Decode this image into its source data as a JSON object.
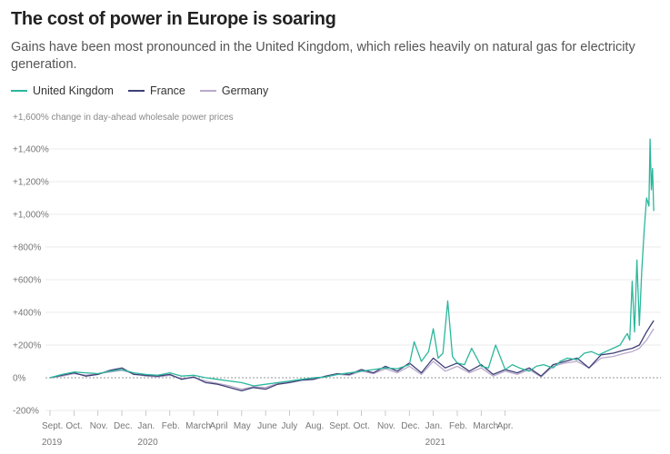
{
  "title": "The cost of power in Europe is soaring",
  "subtitle": "Gains have been most pronounced in the United Kingdom, which relies heavily on natural gas for electricity generation.",
  "legend": [
    {
      "name": "United Kingdom",
      "color": "#2bb79c"
    },
    {
      "name": "France",
      "color": "#3f3f78"
    },
    {
      "name": "Germany",
      "color": "#b9a9c9"
    }
  ],
  "chart_data": {
    "type": "line",
    "title": "The cost of power in Europe is soaring",
    "ylabel": "+1,600% change in day-ahead wholesale power prices",
    "ylim": [
      -200,
      1600
    ],
    "yticks": [
      -200,
      0,
      200,
      400,
      600,
      800,
      1000,
      1200,
      1400
    ],
    "ytick_labels": [
      "-200%",
      "0%",
      "+200%",
      "+400%",
      "+600%",
      "+800%",
      "+1,000%",
      "+1,200%",
      "+1,400%"
    ],
    "xlim": [
      0,
      25.5
    ],
    "xticks": [
      0,
      1,
      2,
      3,
      4,
      5,
      6,
      7,
      8,
      9,
      10,
      11,
      12,
      13,
      14,
      15,
      16,
      17,
      18,
      19
    ],
    "xtick_labels": [
      "Sept.",
      "Oct.",
      "Nov.",
      "Dec.",
      "Jan.",
      "Feb.",
      "March",
      "April",
      "May",
      "June",
      "July",
      "Aug.",
      "Sept.",
      "Oct.",
      "Nov.",
      "Dec.",
      "Jan.",
      "Feb.",
      "March",
      "Apr."
    ],
    "year_labels": [
      {
        "x": 0,
        "label": "2019"
      },
      {
        "x": 4,
        "label": "2020"
      },
      {
        "x": 16,
        "label": "2021"
      }
    ],
    "series": [
      {
        "name": "United Kingdom",
        "color": "#2bb79c",
        "x": [
          0,
          0.5,
          1,
          1.5,
          2,
          2.5,
          3,
          3.5,
          4,
          4.5,
          5,
          5.5,
          6,
          6.5,
          7,
          7.5,
          8,
          8.5,
          9,
          9.5,
          10,
          10.5,
          11,
          11.5,
          12,
          12.5,
          13,
          13.5,
          14,
          14.5,
          15,
          15.2,
          15.5,
          15.8,
          16,
          16.2,
          16.4,
          16.6,
          16.8,
          17,
          17.3,
          17.6,
          18,
          18.3,
          18.6,
          19,
          19.3,
          19.6,
          20,
          20.3,
          20.6,
          21,
          21.3,
          21.6,
          22,
          22.3,
          22.6,
          22.9,
          23.2,
          23.5,
          23.8,
          24,
          24.1,
          24.2,
          24.3,
          24.4,
          24.5,
          24.6,
          24.7,
          24.8,
          24.9,
          25,
          25.05,
          25.1,
          25.15,
          25.2
        ],
        "values": [
          0,
          20,
          35,
          30,
          25,
          40,
          50,
          30,
          20,
          15,
          30,
          10,
          15,
          0,
          -10,
          -20,
          -30,
          -50,
          -40,
          -30,
          -20,
          -10,
          0,
          5,
          20,
          30,
          40,
          50,
          60,
          55,
          80,
          220,
          100,
          160,
          300,
          120,
          150,
          470,
          130,
          90,
          80,
          180,
          70,
          60,
          200,
          50,
          80,
          60,
          40,
          70,
          80,
          60,
          100,
          120,
          110,
          150,
          160,
          140,
          160,
          180,
          200,
          250,
          270,
          230,
          590,
          280,
          720,
          320,
          650,
          900,
          1100,
          1050,
          1460,
          1150,
          1280,
          1020
        ]
      },
      {
        "name": "France",
        "color": "#3f3f78",
        "x": [
          0,
          0.5,
          1,
          1.5,
          2,
          2.5,
          3,
          3.5,
          4,
          4.5,
          5,
          5.5,
          6,
          6.5,
          7,
          7.5,
          8,
          8.5,
          9,
          9.5,
          10,
          10.5,
          11,
          11.5,
          12,
          12.5,
          13,
          13.5,
          14,
          14.5,
          15,
          15.5,
          16,
          16.5,
          17,
          17.5,
          18,
          18.5,
          19,
          19.5,
          20,
          20.5,
          21,
          21.5,
          22,
          22.5,
          23,
          23.5,
          24,
          24.3,
          24.6,
          24.9,
          25.2
        ],
        "values": [
          0,
          15,
          30,
          10,
          20,
          45,
          60,
          20,
          15,
          10,
          20,
          -10,
          5,
          -30,
          -40,
          -60,
          -80,
          -60,
          -70,
          -40,
          -30,
          -15,
          -10,
          10,
          25,
          20,
          50,
          30,
          70,
          40,
          90,
          30,
          120,
          60,
          90,
          40,
          80,
          20,
          50,
          30,
          60,
          10,
          80,
          100,
          120,
          60,
          140,
          150,
          170,
          180,
          200,
          280,
          350
        ]
      },
      {
        "name": "Germany",
        "color": "#b9a9c9",
        "x": [
          0,
          0.5,
          1,
          1.5,
          2,
          2.5,
          3,
          3.5,
          4,
          4.5,
          5,
          5.5,
          6,
          6.5,
          7,
          7.5,
          8,
          8.5,
          9,
          9.5,
          10,
          10.5,
          11,
          11.5,
          12,
          12.5,
          13,
          13.5,
          14,
          14.5,
          15,
          15.5,
          16,
          16.5,
          17,
          17.5,
          18,
          18.5,
          19,
          19.5,
          20,
          20.5,
          21,
          21.5,
          22,
          22.5,
          23,
          23.5,
          24,
          24.3,
          24.6,
          24.9,
          25.2
        ],
        "values": [
          0,
          10,
          25,
          15,
          25,
          35,
          45,
          25,
          10,
          5,
          15,
          -5,
          0,
          -20,
          -35,
          -50,
          -70,
          -55,
          -60,
          -35,
          -25,
          -10,
          -5,
          5,
          20,
          15,
          40,
          25,
          55,
          30,
          70,
          20,
          100,
          40,
          70,
          30,
          60,
          10,
          40,
          20,
          50,
          5,
          70,
          90,
          100,
          60,
          120,
          130,
          150,
          160,
          180,
          230,
          300
        ]
      }
    ]
  }
}
